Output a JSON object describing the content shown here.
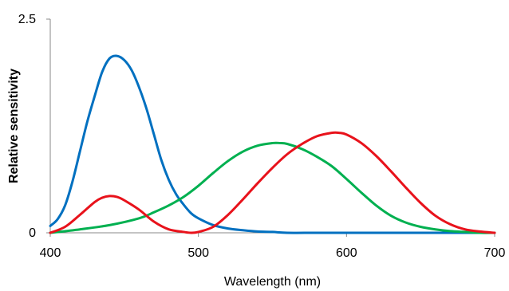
{
  "chart_data": {
    "type": "line",
    "title": "",
    "xlabel": "Wavelength (nm)",
    "ylabel": "Relative sensitivity",
    "xlim": [
      400,
      700
    ],
    "ylim": [
      0,
      2.5
    ],
    "x_ticks": [
      400,
      500,
      600,
      700
    ],
    "y_ticks": [
      0,
      2.5
    ],
    "grid": false,
    "legend": "none",
    "series": [
      {
        "color": "#0070C0",
        "x": [
          400,
          405,
          410,
          415,
          420,
          425,
          430,
          435,
          440,
          445,
          450,
          455,
          460,
          465,
          470,
          475,
          480,
          485,
          490,
          495,
          500,
          510,
          520,
          530,
          540,
          550,
          560,
          580,
          600,
          650,
          700
        ],
        "y": [
          0.08,
          0.16,
          0.32,
          0.6,
          0.95,
          1.3,
          1.6,
          1.88,
          2.04,
          2.07,
          2.02,
          1.9,
          1.7,
          1.45,
          1.15,
          0.85,
          0.62,
          0.45,
          0.33,
          0.23,
          0.17,
          0.09,
          0.05,
          0.03,
          0.015,
          0.01,
          0.0,
          0.0,
          0.0,
          0.0,
          0.0
        ]
      },
      {
        "color": "#E8121B",
        "x": [
          400,
          410,
          420,
          430,
          435,
          440,
          445,
          450,
          460,
          470,
          480,
          490,
          495,
          500,
          510,
          520,
          530,
          540,
          550,
          560,
          570,
          580,
          590,
          595,
          600,
          610,
          620,
          630,
          640,
          650,
          660,
          670,
          680,
          690,
          700
        ],
        "y": [
          0.0,
          0.07,
          0.21,
          0.36,
          0.41,
          0.43,
          0.42,
          0.38,
          0.27,
          0.13,
          0.04,
          0.01,
          0.0,
          0.01,
          0.07,
          0.21,
          0.39,
          0.58,
          0.76,
          0.92,
          1.04,
          1.13,
          1.17,
          1.17,
          1.15,
          1.05,
          0.9,
          0.72,
          0.53,
          0.35,
          0.2,
          0.1,
          0.04,
          0.015,
          0.0
        ]
      },
      {
        "color": "#00B050",
        "x": [
          400,
          420,
          440,
          460,
          470,
          480,
          490,
          500,
          510,
          520,
          530,
          540,
          550,
          555,
          560,
          570,
          580,
          590,
          600,
          610,
          620,
          630,
          640,
          650,
          660,
          670,
          680,
          690,
          700
        ],
        "y": [
          0.0,
          0.04,
          0.09,
          0.17,
          0.24,
          0.32,
          0.42,
          0.55,
          0.7,
          0.84,
          0.95,
          1.02,
          1.05,
          1.05,
          1.04,
          0.98,
          0.89,
          0.78,
          0.63,
          0.47,
          0.32,
          0.2,
          0.12,
          0.07,
          0.04,
          0.02,
          0.01,
          0.0,
          0.0
        ]
      }
    ]
  }
}
